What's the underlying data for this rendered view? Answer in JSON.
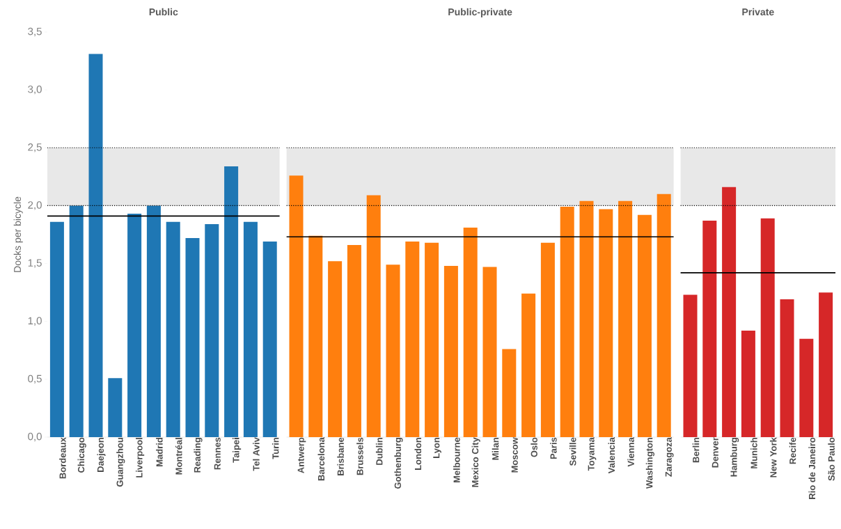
{
  "chart_data": [
    {
      "type": "bar",
      "title": "Public",
      "ylabel": "Docks per bicycle",
      "categories": [
        "Bordeaux",
        "Chicago",
        "Daejeon",
        "Guangzhou",
        "Liverpool",
        "Madrid",
        "Montréal",
        "Reading",
        "Rennes",
        "Taipei",
        "Tel Aviv",
        "Turin"
      ],
      "values": [
        1.86,
        2.0,
        3.31,
        0.51,
        1.93,
        2.0,
        1.86,
        1.72,
        1.84,
        2.34,
        1.86,
        1.69
      ],
      "color": "#1f77b4",
      "ylim": [
        0,
        3.5
      ],
      "yticks": [
        {
          "value": 0,
          "label": "0,0"
        },
        {
          "value": 0.5,
          "label": "0,5"
        },
        {
          "value": 1,
          "label": "1,0"
        },
        {
          "value": 1.5,
          "label": "1,5"
        },
        {
          "value": 2,
          "label": "2,0"
        },
        {
          "value": 2.5,
          "label": "2,5"
        },
        {
          "value": 3,
          "label": "3,0"
        },
        {
          "value": 3.5,
          "label": "3,5"
        }
      ],
      "bands": [
        {
          "axis": "y",
          "from": 2.0,
          "to": 2.5,
          "color": "#e8e8e8"
        }
      ],
      "ref_lines": [
        {
          "axis": "y",
          "value": 1.91,
          "color": "#000000"
        }
      ]
    },
    {
      "type": "bar",
      "title": "Public-private",
      "categories": [
        "Antwerp",
        "Barcelona",
        "Brisbane",
        "Brussels",
        "Dublin",
        "Gothenburg",
        "London",
        "Lyon",
        "Melbourne",
        "Mexico City",
        "Milan",
        "Moscow",
        "Oslo",
        "Paris",
        "Seville",
        "Toyama",
        "Valencia",
        "Vienna",
        "Washington",
        "Zaragoza"
      ],
      "values": [
        2.26,
        1.74,
        1.52,
        1.66,
        2.09,
        1.49,
        1.69,
        1.68,
        1.48,
        1.81,
        1.47,
        0.76,
        1.24,
        1.68,
        1.99,
        2.04,
        1.97,
        2.04,
        1.92,
        2.1
      ],
      "color": "#ff7f0e",
      "ylim": [
        0,
        3.5
      ],
      "tick_labels": "x",
      "bands": [
        {
          "axis": "y",
          "from": 2.0,
          "to": 2.5,
          "color": "#e8e8e8"
        }
      ],
      "ref_lines": [
        {
          "axis": "y",
          "value": 1.73,
          "color": "#000000"
        }
      ]
    },
    {
      "type": "bar",
      "title": "Private",
      "categories": [
        "Berlin",
        "Denver",
        "Hamburg",
        "Munich",
        "New York",
        "Recife",
        "Rio de Janeiro",
        "São Paulo"
      ],
      "values": [
        1.23,
        1.87,
        2.16,
        0.92,
        1.89,
        1.19,
        0.85,
        1.25
      ],
      "color": "#d62728",
      "ylim": [
        0,
        3.5
      ],
      "tick_labels": "x",
      "bands": [
        {
          "axis": "y",
          "from": 2.0,
          "to": 2.5,
          "color": "#e8e8e8"
        }
      ],
      "ref_lines": [
        {
          "axis": "y",
          "value": 1.42,
          "color": "#000000"
        }
      ]
    }
  ]
}
